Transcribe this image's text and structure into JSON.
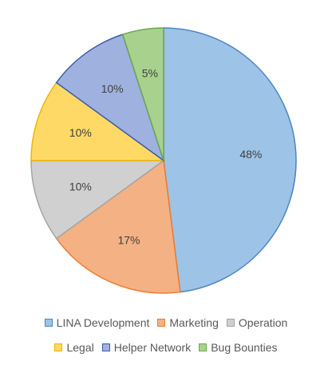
{
  "chart_data": {
    "type": "pie",
    "slices": [
      {
        "label": "LINA Development",
        "value": 48,
        "display": "48%",
        "color": "#9dc3e6",
        "stroke": "#4a86c5"
      },
      {
        "label": "Marketing",
        "value": 17,
        "display": "17%",
        "color": "#f4b183",
        "stroke": "#ed7d31"
      },
      {
        "label": "Operation",
        "value": 10,
        "display": "10%",
        "color": "#d0d0d0",
        "stroke": "#a5a5a5"
      },
      {
        "label": "Legal",
        "value": 10,
        "display": "10%",
        "color": "#ffd966",
        "stroke": "#f0b400"
      },
      {
        "label": "Helper Network",
        "value": 10,
        "display": "10%",
        "color": "#9fb1df",
        "stroke": "#3d5ca8"
      },
      {
        "label": "Bug Bounties",
        "value": 5,
        "display": "5%",
        "color": "#a9d18e",
        "stroke": "#6aa84f"
      }
    ],
    "legend_position": "bottom",
    "start_angle_deg": 0,
    "direction": "clockwise"
  }
}
